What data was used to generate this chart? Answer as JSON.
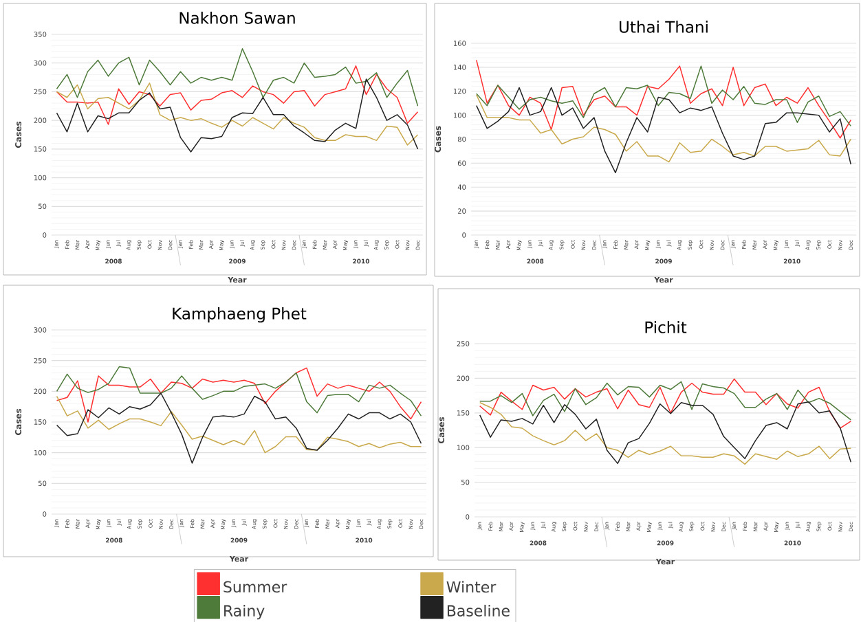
{
  "chart_data": [
    {
      "type": "line",
      "title": "Nakhon Sawan",
      "xlabel": "Year",
      "ylabel": "Cases",
      "categories": [
        "Jan",
        "Feb",
        "Mar",
        "Apr",
        "May",
        "Jun",
        "Jul",
        "Aug",
        "Sep",
        "Oct",
        "Nov",
        "Dec",
        "Jan",
        "Feb",
        "Mar",
        "Apr",
        "May",
        "Jun",
        "Jul",
        "Aug",
        "Sep",
        "Oct",
        "Nov",
        "Dec",
        "Jan",
        "Feb",
        "Mar",
        "Apr",
        "May",
        "Jun",
        "Jul",
        "Aug",
        "Sep",
        "Oct",
        "Nov",
        "Dec"
      ],
      "annotations": [
        "2008",
        "2009",
        "2010"
      ],
      "ylim": [
        0,
        350
      ],
      "yticks": [
        0,
        50,
        100,
        150,
        200,
        250,
        300,
        350
      ],
      "grid": "y",
      "series": [
        {
          "color": "#ff3030",
          "values": [
            250,
            232,
            232,
            230,
            232,
            193,
            255,
            228,
            250,
            245,
            225,
            245,
            248,
            218,
            235,
            237,
            248,
            252,
            240,
            260,
            250,
            245,
            230,
            250,
            252,
            225,
            245,
            250,
            255,
            295,
            245,
            280,
            255,
            240,
            195,
            215
          ]
        },
        {
          "color": "#c9a94b",
          "values": [
            250,
            240,
            262,
            220,
            238,
            240,
            230,
            220,
            235,
            265,
            210,
            200,
            205,
            200,
            203,
            195,
            188,
            200,
            190,
            205,
            195,
            185,
            205,
            195,
            188,
            170,
            165,
            165,
            175,
            172,
            172,
            165,
            190,
            188,
            157,
            175
          ]
        },
        {
          "color": "#4e7a3a",
          "values": [
            255,
            280,
            240,
            285,
            305,
            277,
            300,
            310,
            262,
            305,
            285,
            262,
            285,
            265,
            275,
            270,
            275,
            270,
            325,
            285,
            240,
            270,
            275,
            265,
            300,
            275,
            277,
            280,
            293,
            265,
            268,
            283,
            240,
            265,
            287,
            225
          ]
        },
        {
          "color": "#222222",
          "values": [
            213,
            180,
            230,
            180,
            208,
            203,
            213,
            213,
            235,
            248,
            220,
            223,
            170,
            145,
            170,
            168,
            172,
            205,
            213,
            212,
            240,
            210,
            210,
            190,
            178,
            165,
            163,
            183,
            195,
            186,
            272,
            240,
            200,
            210,
            192,
            150
          ]
        }
      ]
    },
    {
      "type": "line",
      "title": "Uthai Thani",
      "xlabel": "Year",
      "ylabel": "Cases",
      "categories": [
        "Jan",
        "Feb",
        "Mar",
        "Apr",
        "May",
        "Jun",
        "Jul",
        "Aug",
        "Sep",
        "Oct",
        "Nov",
        "Dec",
        "Jan",
        "Feb",
        "Mar",
        "Apr",
        "May",
        "Jun",
        "Jul",
        "Aug",
        "Sep",
        "Oct",
        "Nov",
        "Dec",
        "Jan",
        "Feb",
        "Mar",
        "Apr",
        "May",
        "Jun",
        "Jul",
        "Aug",
        "Sep",
        "Oct",
        "Nov",
        "Dec"
      ],
      "annotations": [
        "2008",
        "2009",
        "2010"
      ],
      "ylim": [
        0,
        160
      ],
      "yticks": [
        0,
        20,
        40,
        60,
        80,
        100,
        120,
        140,
        160
      ],
      "grid": "y",
      "series": [
        {
          "color": "#ff3030",
          "values": [
            146,
            110,
            125,
            108,
            100,
            115,
            110,
            88,
            123,
            124,
            100,
            113,
            116,
            107,
            107,
            100,
            124,
            122,
            130,
            141,
            110,
            118,
            122,
            108,
            140,
            108,
            123,
            126,
            108,
            115,
            110,
            123,
            108,
            95,
            81,
            96
          ]
        },
        {
          "color": "#c9a94b",
          "values": [
            117,
            98,
            98,
            98,
            96,
            96,
            85,
            88,
            76,
            80,
            82,
            90,
            88,
            84,
            70,
            78,
            66,
            66,
            61,
            77,
            69,
            70,
            80,
            74,
            67,
            69,
            66,
            74,
            74,
            70,
            71,
            72,
            79,
            67,
            66,
            80
          ]
        },
        {
          "color": "#4e7a3a",
          "values": [
            118,
            108,
            125,
            115,
            105,
            113,
            115,
            112,
            110,
            112,
            98,
            118,
            123,
            107,
            123,
            122,
            125,
            108,
            119,
            118,
            114,
            141,
            110,
            121,
            113,
            124,
            110,
            109,
            113,
            113,
            94,
            111,
            116,
            99,
            103,
            91
          ]
        },
        {
          "color": "#222222",
          "values": [
            108,
            89,
            95,
            103,
            123,
            100,
            103,
            123,
            100,
            106,
            89,
            98,
            70,
            52,
            77,
            98,
            86,
            115,
            113,
            102,
            106,
            104,
            107,
            85,
            66,
            63,
            66,
            93,
            94,
            102,
            102,
            101,
            100,
            86,
            97,
            59
          ]
        }
      ]
    },
    {
      "type": "line",
      "title": "Kamphaeng Phet",
      "xlabel": "Year",
      "ylabel": "Cases",
      "categories": [
        "Jan",
        "Feb",
        "Mar",
        "Apr",
        "May",
        "Jun",
        "Jul",
        "Aug",
        "Sep",
        "Oct",
        "Nov",
        "Dec",
        "Jan",
        "Feb",
        "Mar",
        "Apr",
        "May",
        "Jun",
        "Jul",
        "Aug",
        "Sep",
        "Oct",
        "Nov",
        "Dec",
        "Jan",
        "Feb",
        "Mar",
        "Apr",
        "May",
        "Jun",
        "Jul",
        "Aug",
        "Sep",
        "Oct",
        "Nov",
        "Dec"
      ],
      "annotations": [
        "2008",
        "2009",
        "2010"
      ],
      "ylim": [
        0,
        300
      ],
      "yticks": [
        0,
        50,
        100,
        150,
        200,
        250,
        300
      ],
      "grid": "y",
      "series": [
        {
          "color": "#ff3030",
          "values": [
            185,
            190,
            217,
            150,
            225,
            210,
            210,
            207,
            207,
            220,
            197,
            215,
            213,
            205,
            220,
            215,
            218,
            215,
            218,
            213,
            180,
            200,
            215,
            230,
            238,
            192,
            212,
            205,
            210,
            205,
            200,
            215,
            200,
            175,
            155,
            183
          ]
        },
        {
          "color": "#c9a94b",
          "values": [
            192,
            160,
            168,
            140,
            153,
            138,
            147,
            155,
            155,
            150,
            144,
            167,
            145,
            122,
            127,
            120,
            113,
            120,
            113,
            136,
            100,
            110,
            126,
            126,
            105,
            104,
            125,
            122,
            118,
            110,
            115,
            108,
            114,
            117,
            110,
            110
          ]
        },
        {
          "color": "#4e7a3a",
          "values": [
            200,
            228,
            205,
            198,
            203,
            213,
            240,
            238,
            197,
            197,
            197,
            205,
            225,
            205,
            187,
            193,
            200,
            200,
            208,
            210,
            212,
            205,
            215,
            230,
            183,
            165,
            193,
            195,
            195,
            183,
            210,
            205,
            210,
            197,
            185,
            160
          ]
        },
        {
          "color": "#222222",
          "values": [
            145,
            128,
            131,
            170,
            157,
            173,
            163,
            175,
            171,
            178,
            197,
            165,
            130,
            83,
            125,
            158,
            160,
            158,
            163,
            192,
            183,
            155,
            158,
            140,
            107,
            104,
            120,
            140,
            163,
            155,
            165,
            165,
            155,
            163,
            150,
            115
          ]
        }
      ]
    },
    {
      "type": "line",
      "title": "Pichit",
      "xlabel": "Year",
      "ylabel": "Cases",
      "categories": [
        "Jan",
        "Feb",
        "Mar",
        "Apr",
        "May",
        "Jun",
        "Jul",
        "Aug",
        "Sep",
        "Oct",
        "Nov",
        "Dec",
        "Jan",
        "Feb",
        "Mar",
        "Apr",
        "May",
        "Jun",
        "Jul",
        "Aug",
        "Sep",
        "Oct",
        "Nov",
        "Dec",
        "Jan",
        "Feb",
        "Mar",
        "Apr",
        "May",
        "Jun",
        "Jul",
        "Aug",
        "Sep",
        "Oct",
        "Nov",
        "Dec"
      ],
      "annotations": [
        "2008",
        "2009",
        "2010"
      ],
      "ylim": [
        0,
        250
      ],
      "yticks": [
        0,
        50,
        100,
        150,
        200,
        250
      ],
      "grid": "y",
      "legend": "bottom",
      "series": [
        {
          "name": "Summer",
          "color": "#ff3030",
          "values": [
            160,
            147,
            180,
            167,
            155,
            190,
            183,
            187,
            170,
            185,
            173,
            180,
            185,
            156,
            183,
            162,
            158,
            187,
            150,
            180,
            193,
            180,
            177,
            177,
            199,
            180,
            180,
            162,
            178,
            163,
            157,
            180,
            187,
            152,
            128,
            138
          ]
        },
        {
          "name": "Winter",
          "color": "#c9a94b",
          "values": [
            165,
            158,
            148,
            130,
            128,
            117,
            110,
            104,
            110,
            125,
            110,
            120,
            100,
            96,
            86,
            96,
            90,
            95,
            102,
            88,
            88,
            86,
            86,
            91,
            88,
            76,
            91,
            87,
            83,
            95,
            87,
            91,
            102,
            84,
            98,
            99
          ]
        },
        {
          "name": "Rainy",
          "color": "#4e7a3a",
          "values": [
            167,
            167,
            175,
            165,
            178,
            146,
            168,
            177,
            152,
            185,
            162,
            172,
            193,
            176,
            188,
            187,
            173,
            190,
            184,
            195,
            155,
            192,
            188,
            186,
            178,
            158,
            158,
            170,
            178,
            155,
            183,
            165,
            171,
            164,
            152,
            140
          ]
        },
        {
          "name": "Baseline",
          "color": "#222222",
          "values": [
            147,
            115,
            140,
            138,
            142,
            134,
            161,
            136,
            162,
            148,
            127,
            141,
            96,
            77,
            107,
            113,
            135,
            163,
            149,
            165,
            161,
            161,
            148,
            116,
            100,
            84,
            110,
            132,
            136,
            127,
            163,
            166,
            150,
            153,
            128,
            79
          ]
        }
      ]
    }
  ]
}
